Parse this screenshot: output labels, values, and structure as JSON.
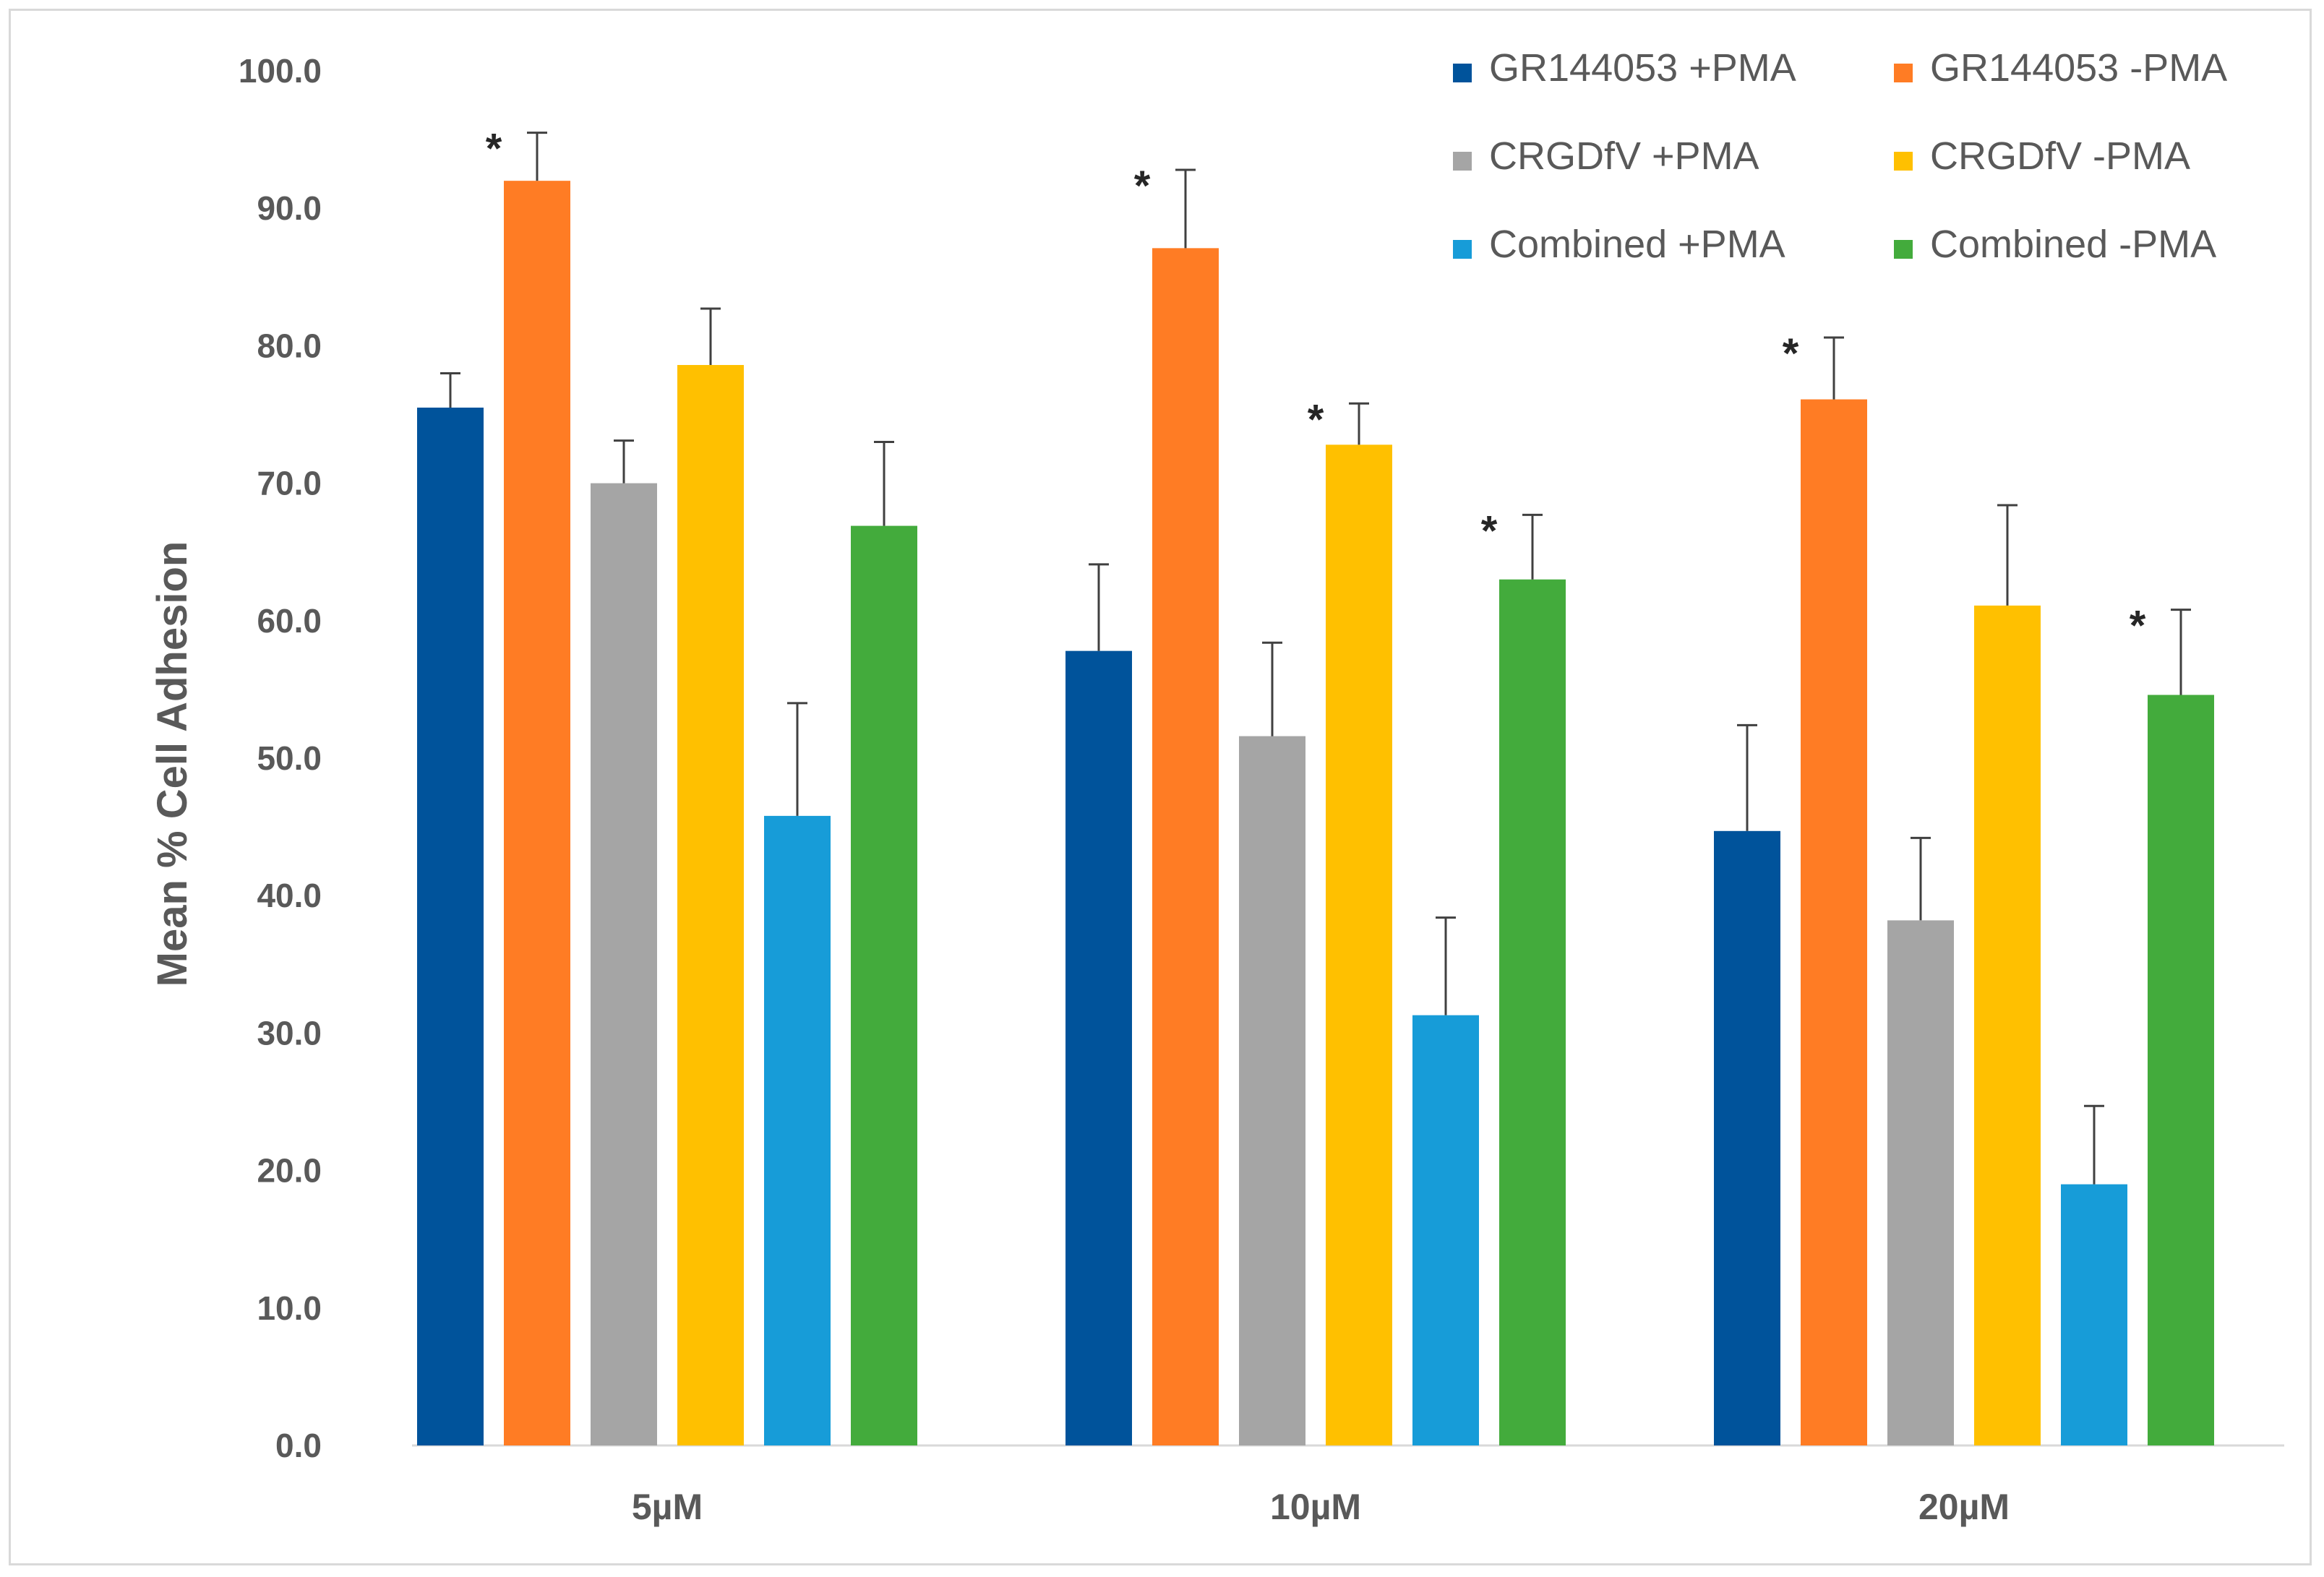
{
  "chart_data": {
    "type": "bar",
    "title": "",
    "xlabel": "",
    "ylabel": "Mean % Cell Adhesion",
    "ylim": [
      0,
      100
    ],
    "ytick_step": 10,
    "ytick_labels": [
      "0.0",
      "10.0",
      "20.0",
      "30.0",
      "40.0",
      "50.0",
      "60.0",
      "70.0",
      "80.0",
      "90.0",
      "100.0"
    ],
    "categories": [
      "5µM",
      "10µM",
      "20µM"
    ],
    "grid": false,
    "legend_position": "top-right",
    "significance_marker": "*",
    "series": [
      {
        "name": "GR144053 +PMA",
        "color": "#00539b",
        "values": [
          75.5,
          57.8,
          44.7
        ],
        "errors": [
          2.5,
          6.3,
          7.7
        ],
        "significant": [
          false,
          false,
          false
        ]
      },
      {
        "name": "GR144053 -PMA",
        "color": "#ff7c24",
        "values": [
          92.0,
          87.1,
          76.1
        ],
        "errors": [
          3.5,
          5.7,
          4.5
        ],
        "significant": [
          true,
          true,
          true
        ]
      },
      {
        "name": "CRGDfV +PMA",
        "color": "#a5a5a5",
        "values": [
          70.0,
          51.6,
          38.2
        ],
        "errors": [
          3.1,
          6.8,
          6.0
        ],
        "significant": [
          false,
          false,
          false
        ]
      },
      {
        "name": "CRGDfV -PMA",
        "color": "#ffc000",
        "values": [
          78.6,
          72.8,
          61.1
        ],
        "errors": [
          4.1,
          3.0,
          7.3
        ],
        "significant": [
          false,
          true,
          false
        ]
      },
      {
        "name": "Combined +PMA",
        "color": "#179cd8",
        "values": [
          45.8,
          31.3,
          19.0
        ],
        "errors": [
          8.2,
          7.1,
          5.7
        ],
        "significant": [
          false,
          false,
          false
        ]
      },
      {
        "name": "Combined -PMA",
        "color": "#43ab3c",
        "values": [
          66.9,
          63.0,
          54.6
        ],
        "errors": [
          6.1,
          4.7,
          6.2
        ],
        "significant": [
          false,
          true,
          true
        ]
      }
    ]
  }
}
